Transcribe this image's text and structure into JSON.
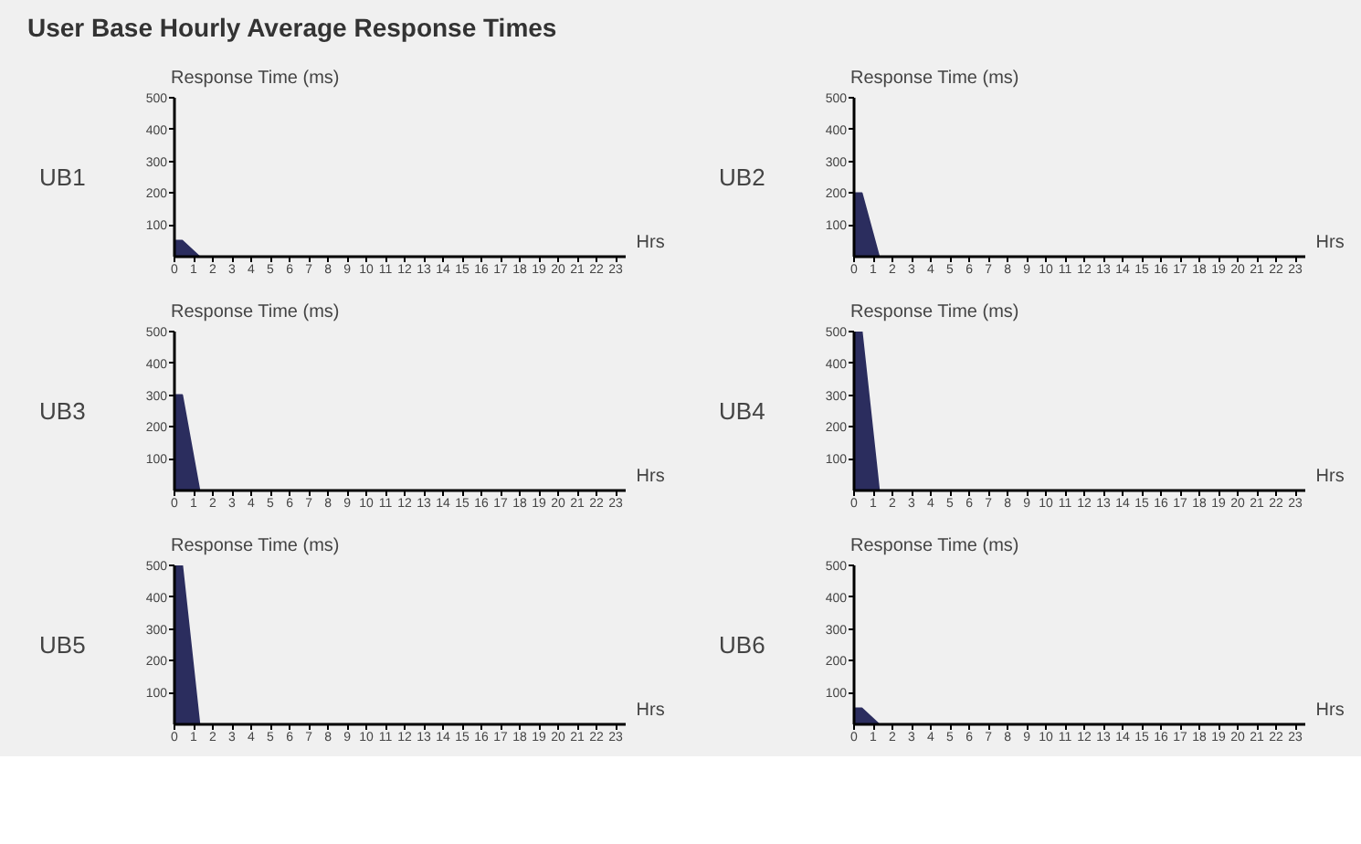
{
  "chart_data": [
    {
      "type": "area",
      "title": "User Base Hourly Average Response Times",
      "subtitle": "UB1",
      "ylabel": "Response Time (ms)",
      "xlabel": "Hrs",
      "x": [
        0,
        0.4,
        1.3
      ],
      "series": [
        {
          "color": "#2b2d5e",
          "values": [
            50,
            50,
            0
          ]
        }
      ],
      "xlim": [
        0,
        23.5
      ],
      "ylim": [
        0,
        500
      ],
      "xticks": [
        0,
        1,
        2,
        3,
        4,
        5,
        6,
        7,
        8,
        9,
        10,
        11,
        12,
        13,
        14,
        15,
        16,
        17,
        18,
        19,
        20,
        21,
        22,
        23
      ],
      "yticks": [
        100,
        200,
        300,
        400,
        500
      ],
      "grid": false
    },
    {
      "type": "area",
      "subtitle": "UB2",
      "ylabel": "Response Time (ms)",
      "xlabel": "Hrs",
      "x": [
        0,
        0.4,
        1.3
      ],
      "series": [
        {
          "color": "#2b2d5e",
          "values": [
            200,
            200,
            0
          ]
        }
      ],
      "xlim": [
        0,
        23.5
      ],
      "ylim": [
        0,
        500
      ],
      "xticks": [
        0,
        1,
        2,
        3,
        4,
        5,
        6,
        7,
        8,
        9,
        10,
        11,
        12,
        13,
        14,
        15,
        16,
        17,
        18,
        19,
        20,
        21,
        22,
        23
      ],
      "yticks": [
        100,
        200,
        300,
        400,
        500
      ],
      "grid": false
    },
    {
      "type": "area",
      "subtitle": "UB3",
      "ylabel": "Response Time (ms)",
      "xlabel": "Hrs",
      "x": [
        0,
        0.4,
        1.3
      ],
      "series": [
        {
          "color": "#2b2d5e",
          "values": [
            300,
            300,
            0
          ]
        }
      ],
      "xlim": [
        0,
        23.5
      ],
      "ylim": [
        0,
        500
      ],
      "xticks": [
        0,
        1,
        2,
        3,
        4,
        5,
        6,
        7,
        8,
        9,
        10,
        11,
        12,
        13,
        14,
        15,
        16,
        17,
        18,
        19,
        20,
        21,
        22,
        23
      ],
      "yticks": [
        100,
        200,
        300,
        400,
        500
      ],
      "grid": false
    },
    {
      "type": "area",
      "subtitle": "UB4",
      "ylabel": "Response Time (ms)",
      "xlabel": "Hrs",
      "x": [
        0,
        0.4,
        1.3
      ],
      "series": [
        {
          "color": "#2b2d5e",
          "values": [
            500,
            500,
            0
          ]
        }
      ],
      "xlim": [
        0,
        23.5
      ],
      "ylim": [
        0,
        500
      ],
      "xticks": [
        0,
        1,
        2,
        3,
        4,
        5,
        6,
        7,
        8,
        9,
        10,
        11,
        12,
        13,
        14,
        15,
        16,
        17,
        18,
        19,
        20,
        21,
        22,
        23
      ],
      "yticks": [
        100,
        200,
        300,
        400,
        500
      ],
      "grid": false
    },
    {
      "type": "area",
      "subtitle": "UB5",
      "ylabel": "Response Time (ms)",
      "xlabel": "Hrs",
      "x": [
        0,
        0.4,
        1.3
      ],
      "series": [
        {
          "color": "#2b2d5e",
          "values": [
            500,
            500,
            0
          ]
        }
      ],
      "xlim": [
        0,
        23.5
      ],
      "ylim": [
        0,
        500
      ],
      "xticks": [
        0,
        1,
        2,
        3,
        4,
        5,
        6,
        7,
        8,
        9,
        10,
        11,
        12,
        13,
        14,
        15,
        16,
        17,
        18,
        19,
        20,
        21,
        22,
        23
      ],
      "yticks": [
        100,
        200,
        300,
        400,
        500
      ],
      "grid": false
    },
    {
      "type": "area",
      "subtitle": "UB6",
      "ylabel": "Response Time (ms)",
      "xlabel": "Hrs",
      "x": [
        0,
        0.4,
        1.3
      ],
      "series": [
        {
          "color": "#2b2d5e",
          "values": [
            50,
            50,
            0
          ]
        }
      ],
      "xlim": [
        0,
        23.5
      ],
      "ylim": [
        0,
        500
      ],
      "xticks": [
        0,
        1,
        2,
        3,
        4,
        5,
        6,
        7,
        8,
        9,
        10,
        11,
        12,
        13,
        14,
        15,
        16,
        17,
        18,
        19,
        20,
        21,
        22,
        23
      ],
      "yticks": [
        100,
        200,
        300,
        400,
        500
      ],
      "grid": false
    }
  ]
}
